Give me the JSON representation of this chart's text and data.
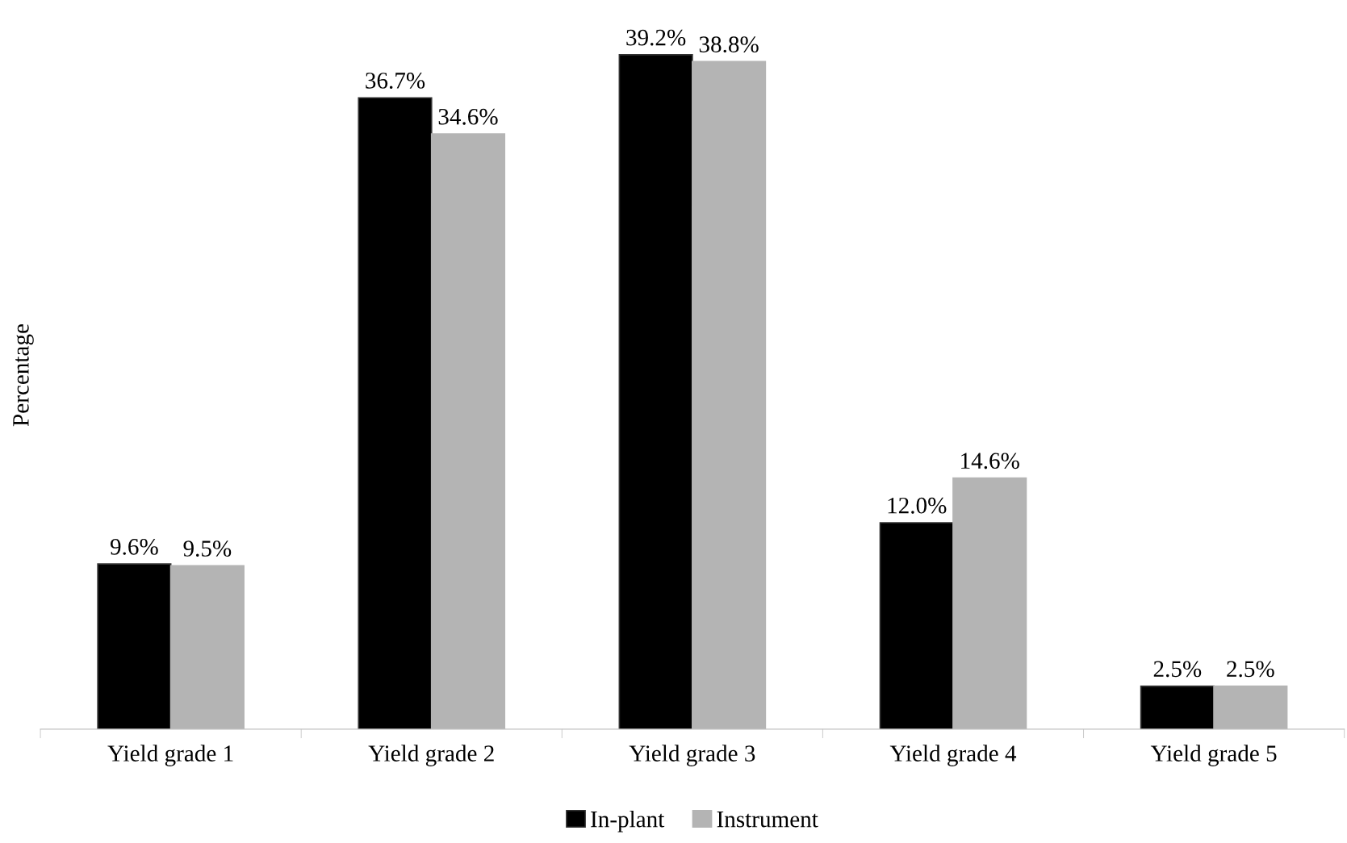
{
  "chart_data": {
    "type": "bar",
    "ylabel": "Percentage",
    "categories": [
      "Yield grade 1",
      "Yield grade 2",
      "Yield grade 3",
      "Yield grade 4",
      "Yield grade 5"
    ],
    "series": [
      {
        "name": "In-plant",
        "color": "#000000",
        "values": [
          9.6,
          36.7,
          39.2,
          12.0,
          2.5
        ],
        "value_labels": [
          "9.6%",
          "36.7%",
          "39.2%",
          "12.0%",
          "2.5%"
        ]
      },
      {
        "name": "Instrument",
        "color": "#b4b4b4",
        "values": [
          9.5,
          34.6,
          38.8,
          14.6,
          2.5
        ],
        "value_labels": [
          "9.5%",
          "34.6%",
          "38.8%",
          "14.6%",
          "2.5%"
        ]
      }
    ],
    "legend": "bottom",
    "grid": false
  }
}
